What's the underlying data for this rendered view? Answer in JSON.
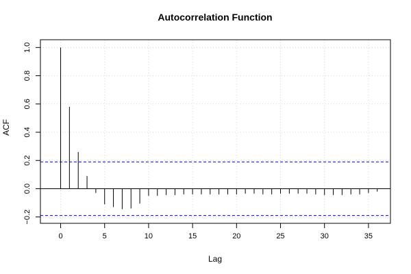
{
  "chart_data": {
    "type": "bar",
    "title": "Autocorrelation Function",
    "xlabel": "Lag",
    "ylabel": "ACF",
    "xlim": [
      -2.3,
      37.5
    ],
    "ylim": [
      -0.245,
      1.055
    ],
    "x_ticks": [
      0,
      5,
      10,
      15,
      20,
      25,
      30,
      35
    ],
    "y_ticks": [
      -0.2,
      0.0,
      0.2,
      0.4,
      0.6,
      0.8,
      1.0
    ],
    "x_tick_labels": [
      "0",
      "5",
      "10",
      "15",
      "20",
      "25",
      "30",
      "35"
    ],
    "y_tick_labels": [
      "−0.2",
      "0.0",
      "0.2",
      "0.4",
      "0.6",
      "0.8",
      "1.0"
    ],
    "grid": true,
    "confidence_bounds": [
      0.19,
      -0.19
    ],
    "lags": [
      0,
      1,
      2,
      3,
      4,
      5,
      6,
      7,
      8,
      9,
      10,
      11,
      12,
      13,
      14,
      15,
      16,
      17,
      18,
      19,
      20,
      21,
      22,
      23,
      24,
      25,
      26,
      27,
      28,
      29,
      30,
      31,
      32,
      33,
      34,
      35,
      36
    ],
    "values": [
      1.0,
      0.58,
      0.26,
      0.09,
      -0.03,
      -0.11,
      -0.13,
      -0.145,
      -0.14,
      -0.105,
      -0.05,
      -0.05,
      -0.045,
      -0.045,
      -0.04,
      -0.04,
      -0.04,
      -0.04,
      -0.04,
      -0.04,
      -0.04,
      -0.035,
      -0.035,
      -0.04,
      -0.04,
      -0.035,
      -0.035,
      -0.035,
      -0.035,
      -0.04,
      -0.045,
      -0.045,
      -0.045,
      -0.04,
      -0.04,
      -0.03,
      -0.02
    ],
    "colors": {
      "bars": "#000000",
      "bounds": "#0000ff",
      "grid": "#d3d3d3",
      "zero_line": "#000000"
    }
  }
}
